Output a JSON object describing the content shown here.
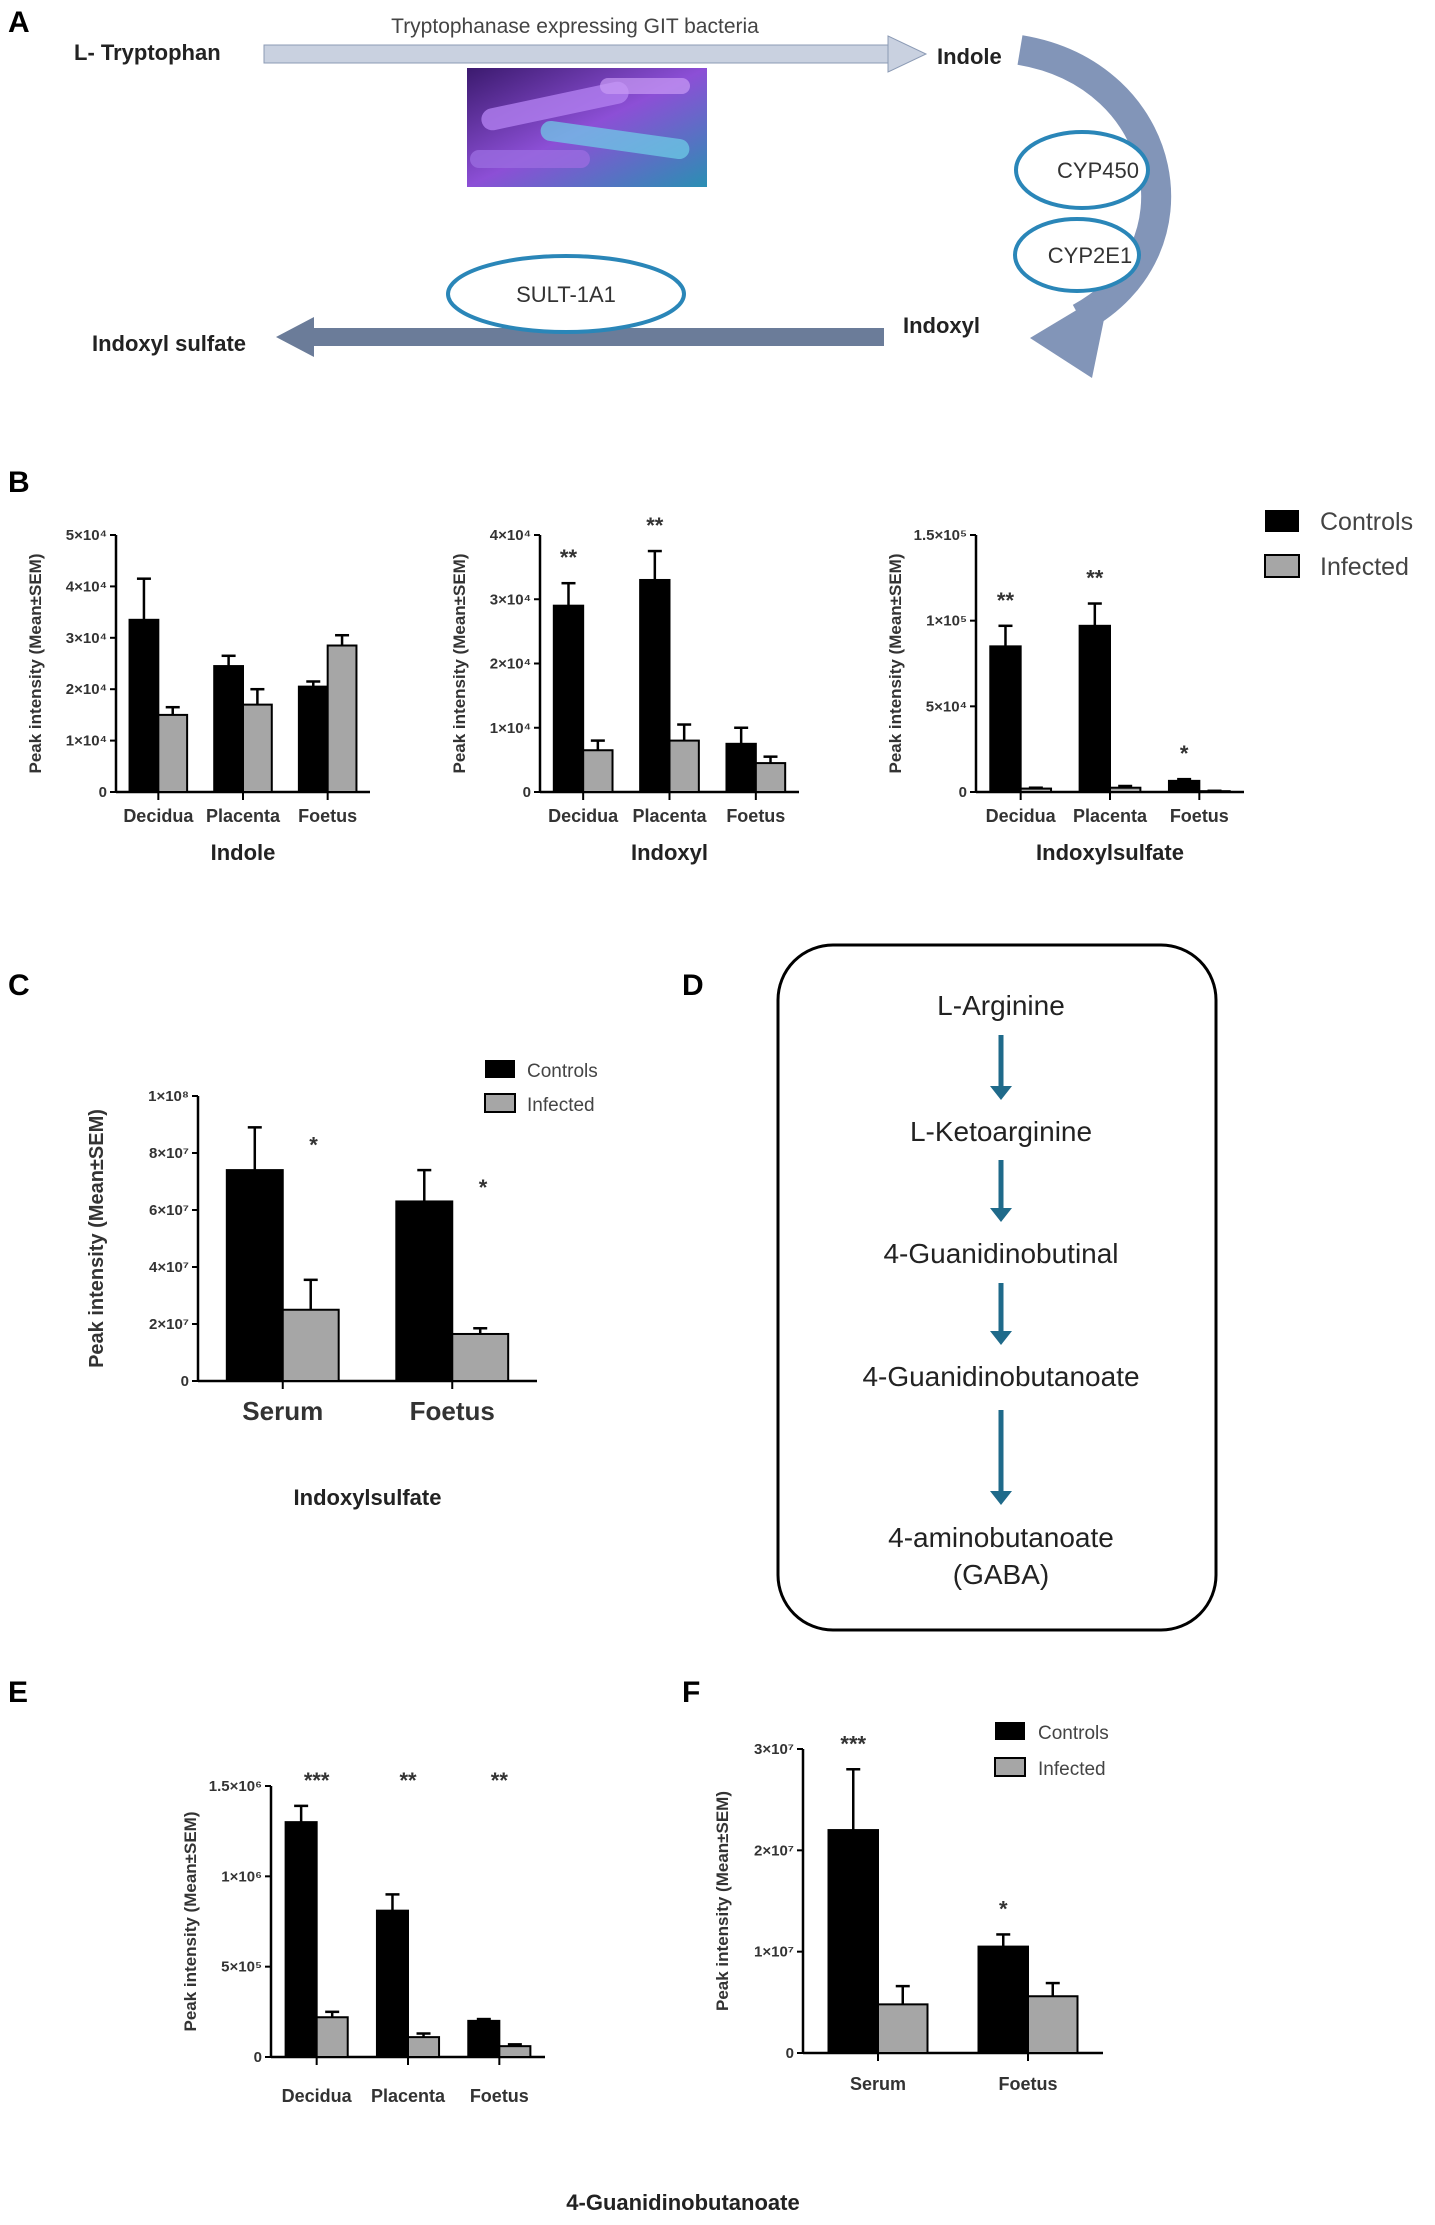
{
  "panels": {
    "a": "A",
    "b": "B",
    "c": "C",
    "d": "D",
    "e": "E",
    "f": "F"
  },
  "pathway_a": {
    "tryptophan": "L- Tryptophan",
    "bacteria_label": "Tryptophanase expressing GIT bacteria",
    "indole": "Indole",
    "cyp450": "CYP450",
    "cyp2e1": "CYP2E1",
    "indoxyl": "Indoxyl",
    "sult": "SULT-1A1",
    "indoxyl_sulfate": "Indoxyl sulfate"
  },
  "pathway_d": {
    "steps": [
      "L-Arginine",
      "L-Ketoarginine",
      "4-Guanidinobutinal",
      "4-Guanidinobutanoate",
      "4-aminobutanoate",
      "(GABA)"
    ],
    "arrow_color": "#1f6a8a"
  },
  "legend": {
    "controls": "Controls",
    "infected": "Infected"
  },
  "colors": {
    "controls": "#000000",
    "infected": "#a6a6a6"
  },
  "shared_titles": {
    "e_f": "4-Guanidinobutanoate"
  },
  "chart_data": [
    {
      "type": "bar",
      "panel": "B",
      "title": "Indole",
      "ylabel": "Peak intensity (Mean±SEM)",
      "ylim": [
        0,
        50000
      ],
      "yticks": [
        0,
        10000,
        20000,
        30000,
        40000,
        50000
      ],
      "ytick_labels": [
        "0",
        "1×10⁴",
        "2×10⁴",
        "3×10⁴",
        "4×10⁴",
        "5×10⁴"
      ],
      "categories": [
        "Decidua",
        "Placenta",
        "Foetus"
      ],
      "series": [
        {
          "name": "Controls",
          "values": [
            33500,
            24500,
            20500
          ],
          "errors": [
            8000,
            2000,
            1000
          ]
        },
        {
          "name": "Infected",
          "values": [
            15000,
            17000,
            28500
          ],
          "errors": [
            1500,
            3000,
            2000
          ]
        }
      ],
      "significance": [
        "",
        "",
        ""
      ]
    },
    {
      "type": "bar",
      "panel": "B",
      "title": "Indoxyl",
      "ylabel": "Peak intensity (Mean±SEM)",
      "ylim": [
        0,
        40000
      ],
      "yticks": [
        0,
        10000,
        20000,
        30000,
        40000
      ],
      "ytick_labels": [
        "0",
        "1×10⁴",
        "2×10⁴",
        "3×10⁴",
        "4×10⁴"
      ],
      "categories": [
        "Decidua",
        "Placenta",
        "Foetus"
      ],
      "series": [
        {
          "name": "Controls",
          "values": [
            29000,
            33000,
            7500
          ],
          "errors": [
            3500,
            4500,
            2500
          ]
        },
        {
          "name": "Infected",
          "values": [
            6500,
            8000,
            4500
          ],
          "errors": [
            1500,
            2500,
            1000
          ]
        }
      ],
      "significance": [
        "**",
        "**",
        ""
      ]
    },
    {
      "type": "bar",
      "panel": "B",
      "title": "Indoxylsulfate",
      "ylabel": "Peak intensity (Mean±SEM)",
      "ylim": [
        0,
        150000
      ],
      "yticks": [
        0,
        50000,
        100000,
        150000
      ],
      "ytick_labels": [
        "0",
        "5×10⁴",
        "1×10⁵",
        "1.5×10⁵"
      ],
      "categories": [
        "Decidua",
        "Placenta",
        "Foetus"
      ],
      "series": [
        {
          "name": "Controls",
          "values": [
            85000,
            97000,
            6500
          ],
          "errors": [
            12000,
            13000,
            1000
          ]
        },
        {
          "name": "Infected",
          "values": [
            2000,
            2500,
            500
          ],
          "errors": [
            500,
            1000,
            200
          ]
        }
      ],
      "significance": [
        "**",
        "**",
        "*"
      ]
    },
    {
      "type": "bar",
      "panel": "C",
      "title": "Indoxylsulfate",
      "ylabel": "Peak intensity (Mean±SEM)",
      "ylim": [
        0,
        100000000
      ],
      "yticks": [
        0,
        20000000,
        40000000,
        60000000,
        80000000,
        100000000
      ],
      "ytick_labels": [
        "0",
        "2×10⁷",
        "4×10⁷",
        "6×10⁷",
        "8×10⁷",
        "1×10⁸"
      ],
      "categories": [
        "Serum",
        "Foetus"
      ],
      "series": [
        {
          "name": "Controls",
          "values": [
            74000000,
            63000000
          ],
          "errors": [
            15000000,
            11000000
          ]
        },
        {
          "name": "Infected",
          "values": [
            25000000,
            16500000
          ],
          "errors": [
            10500000,
            2000000
          ]
        }
      ],
      "significance": [
        "*",
        "*"
      ]
    },
    {
      "type": "bar",
      "panel": "E",
      "title": "",
      "ylabel": "Peak intensity (Mean±SEM)",
      "ylim": [
        0,
        1500000
      ],
      "yticks": [
        0,
        500000,
        1000000,
        1500000
      ],
      "ytick_labels": [
        "0",
        "5×10⁵",
        "1×10⁶",
        "1.5×10⁶"
      ],
      "categories": [
        "Decidua",
        "Placenta",
        "Foetus"
      ],
      "series": [
        {
          "name": "Controls",
          "values": [
            1300000,
            810000,
            200000
          ],
          "errors": [
            90000,
            90000,
            10000
          ]
        },
        {
          "name": "Infected",
          "values": [
            220000,
            110000,
            60000
          ],
          "errors": [
            30000,
            20000,
            10000
          ]
        }
      ],
      "significance": [
        "***",
        "**",
        "**"
      ]
    },
    {
      "type": "bar",
      "panel": "F",
      "title": "",
      "ylabel": "Peak intensity (Mean±SEM)",
      "ylim": [
        0,
        30000000
      ],
      "yticks": [
        0,
        10000000,
        20000000,
        30000000
      ],
      "ytick_labels": [
        "0",
        "1×10⁷",
        "2×10⁷",
        "3×10⁷"
      ],
      "categories": [
        "Serum",
        "Foetus"
      ],
      "series": [
        {
          "name": "Controls",
          "values": [
            22000000,
            10500000
          ],
          "errors": [
            6000000,
            1200000
          ]
        },
        {
          "name": "Infected",
          "values": [
            4800000,
            5600000
          ],
          "errors": [
            1800000,
            1300000
          ]
        }
      ],
      "significance": [
        "***",
        "*"
      ]
    }
  ]
}
